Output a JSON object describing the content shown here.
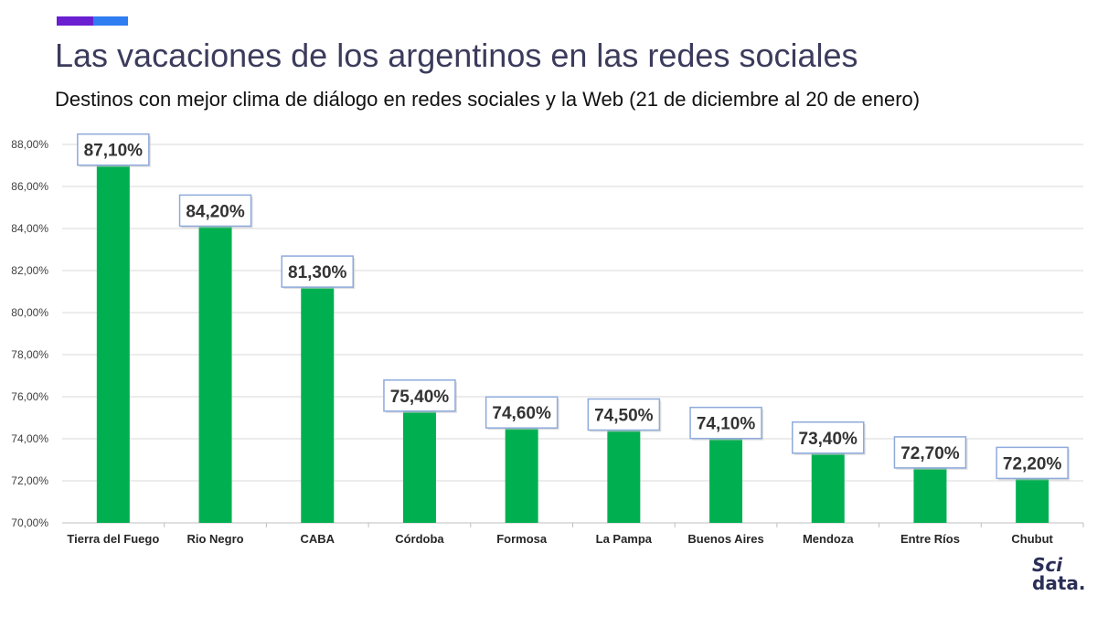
{
  "header": {
    "title": "Las vacaciones de los argentinos en las redes sociales",
    "subtitle": "Destinos con mejor clima de diálogo en redes sociales y la Web (21 de diciembre al 20 de enero)"
  },
  "brand": {
    "line1": "Sci",
    "line2": "data."
  },
  "colors": {
    "bar": "#00b050",
    "grid": "#d9d9d9",
    "label_border": "#8eaadb",
    "accent1": "#6a1fd1",
    "accent2": "#2f7df0"
  },
  "chart_data": {
    "type": "bar",
    "title": "Las vacaciones de los argentinos en las redes sociales",
    "subtitle": "Destinos con mejor clima de diálogo en redes sociales y la Web (21 de diciembre al 20 de enero)",
    "xlabel": "",
    "ylabel": "",
    "ylim": [
      70,
      88
    ],
    "yticks": [
      70,
      72,
      74,
      76,
      78,
      80,
      82,
      84,
      86,
      88
    ],
    "ytick_labels": [
      "70,00%",
      "72,00%",
      "74,00%",
      "76,00%",
      "78,00%",
      "80,00%",
      "82,00%",
      "84,00%",
      "86,00%",
      "88,00%"
    ],
    "grid": true,
    "categories": [
      "Tierra del Fuego",
      "Rio Negro",
      "CABA",
      "Córdoba",
      "Formosa",
      "La Pampa",
      "Buenos Aires",
      "Mendoza",
      "Entre Ríos",
      "Chubut"
    ],
    "values": [
      87.1,
      84.2,
      81.3,
      75.4,
      74.6,
      74.5,
      74.1,
      73.4,
      72.7,
      72.2
    ],
    "data_labels": [
      "87,10%",
      "84,20%",
      "81,30%",
      "75,40%",
      "74,60%",
      "74,50%",
      "74,10%",
      "73,40%",
      "72,70%",
      "72,20%"
    ]
  }
}
